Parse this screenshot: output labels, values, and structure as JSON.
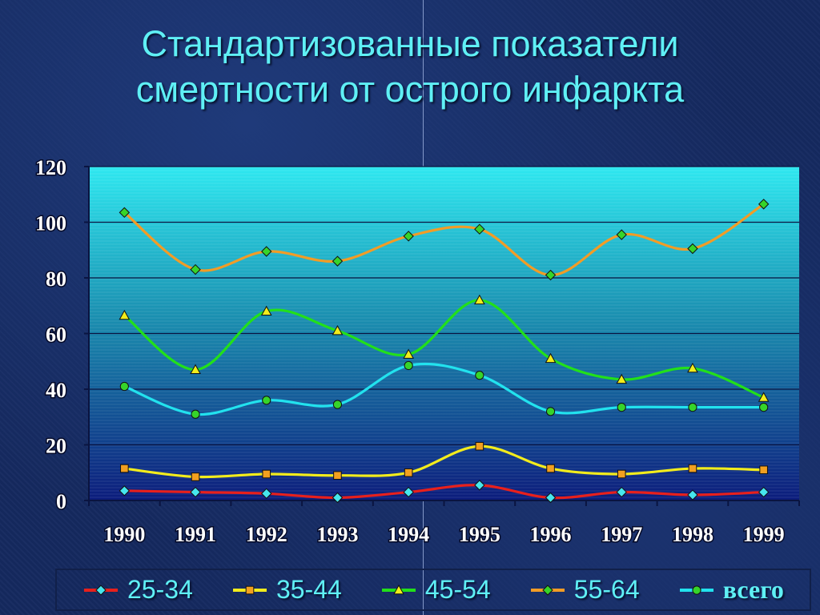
{
  "slide": {
    "title_line1": "Стандартизованные показатели",
    "title_line2": "смертности от острого инфаркта"
  },
  "chart_data": {
    "type": "line",
    "title": "",
    "xlabel": "",
    "ylabel": "",
    "categories": [
      "1990",
      "1991",
      "1992",
      "1993",
      "1994",
      "1995",
      "1996",
      "1997",
      "1998",
      "1999"
    ],
    "ylim": [
      0,
      120
    ],
    "yticks": [
      "0",
      "20",
      "40",
      "60",
      "80",
      "100",
      "120"
    ],
    "grid": true,
    "legend_position": "bottom",
    "series": [
      {
        "name": "25-34",
        "color": "#e8201c",
        "marker": "diamond",
        "marker_color": "#46e6ee",
        "values": [
          3.5,
          3,
          2.5,
          1,
          3,
          5.5,
          1,
          3,
          2,
          3
        ]
      },
      {
        "name": "35-44",
        "color": "#f2ec1c",
        "marker": "square",
        "marker_color": "#f2a020",
        "values": [
          11.5,
          8.5,
          9.5,
          9,
          10,
          19.5,
          11.5,
          9.5,
          11.5,
          11
        ]
      },
      {
        "name": "45-54",
        "color": "#22e01a",
        "marker": "triangle",
        "marker_color": "#f2ec1c",
        "values": [
          66.5,
          47,
          68,
          61,
          52.5,
          72,
          51,
          43.5,
          47.5,
          37
        ]
      },
      {
        "name": "55-64",
        "color": "#f29c26",
        "marker": "diamond",
        "marker_color": "#36d42a",
        "values": [
          103.5,
          83,
          89.5,
          86,
          95,
          97.5,
          81,
          95.5,
          90.5,
          106.5
        ]
      },
      {
        "name": "всего",
        "color": "#22e2ee",
        "marker": "circle",
        "marker_color": "#36d42a",
        "values": [
          41,
          31,
          36,
          34.5,
          48.5,
          45,
          32,
          33.5,
          33.5,
          33.5
        ]
      }
    ]
  }
}
